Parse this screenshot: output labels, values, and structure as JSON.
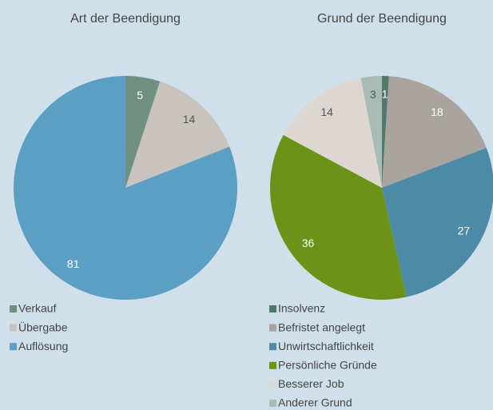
{
  "chart_data": [
    {
      "type": "pie",
      "title": "Art der Beendigung",
      "categories": [
        "Verkauf",
        "Übergabe",
        "Auflösung"
      ],
      "values": [
        5,
        14,
        81
      ],
      "colors": [
        "#6f8f81",
        "#c9c3bd",
        "#5b9fc4"
      ]
    },
    {
      "type": "pie",
      "title": "Grund der Beendigung",
      "categories": [
        "Insolvenz",
        "Befristet angelegt",
        "Unwirtschaftlichkeit",
        "Persönliche Gründe",
        "Besserer Job",
        "Anderer Grund"
      ],
      "values": [
        1,
        18,
        27,
        36,
        14,
        3
      ],
      "colors": [
        "#4f7a6a",
        "#aaa49e",
        "#4d8aa8",
        "#6b9317",
        "#ddd6d1",
        "#a8bcb6"
      ]
    }
  ]
}
